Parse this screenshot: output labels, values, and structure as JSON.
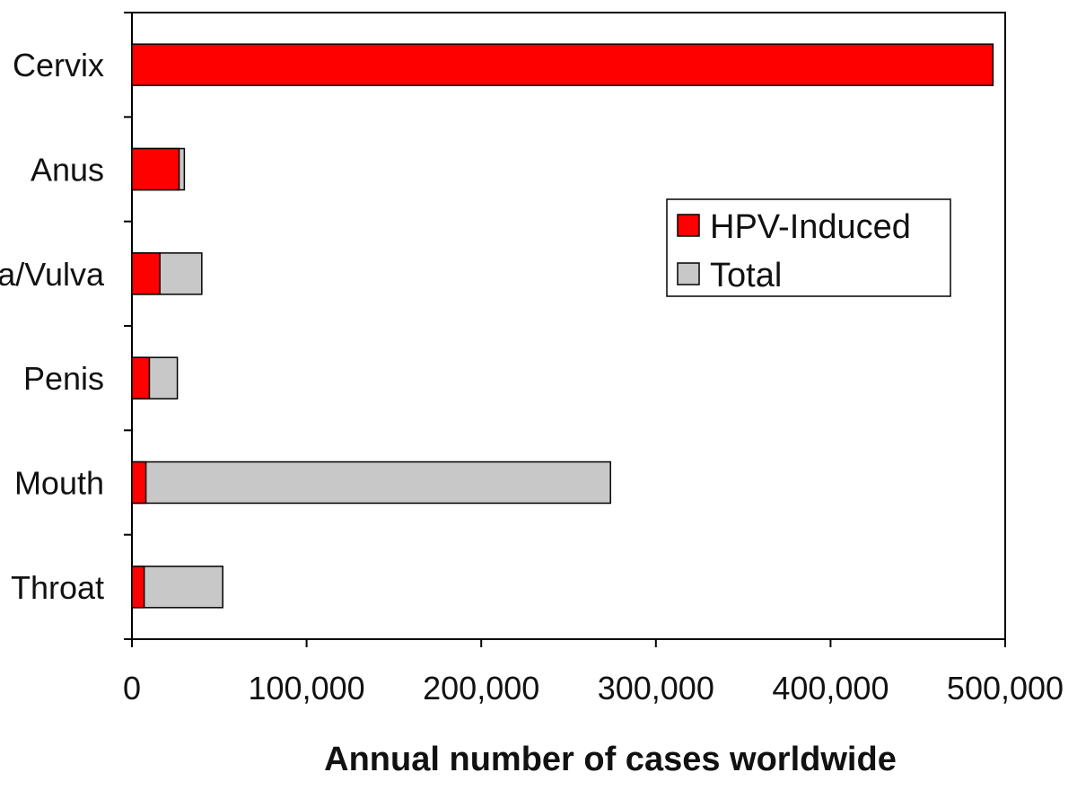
{
  "chart_data": {
    "type": "bar",
    "orientation": "horizontal",
    "stacked": true,
    "categories": [
      "Cervix",
      "Anus",
      "Vagina/Vulva",
      "Penis",
      "Mouth",
      "Throat"
    ],
    "series": [
      {
        "name": "HPV-Induced",
        "color": "#ff0000",
        "values": [
          493000,
          27000,
          16000,
          10000,
          8000,
          7000
        ]
      },
      {
        "name": "Total",
        "color": "#c8c8c8",
        "values": [
          493000,
          30000,
          40000,
          26000,
          274000,
          52000
        ]
      }
    ],
    "xlabel": "Annual number of cases worldwide",
    "ylabel": "",
    "xlim": [
      0,
      500000
    ],
    "xticks": [
      "0",
      "100,000",
      "200,000",
      "300,000",
      "400,000",
      "500,000"
    ],
    "grid": false,
    "legend_position": "right"
  }
}
